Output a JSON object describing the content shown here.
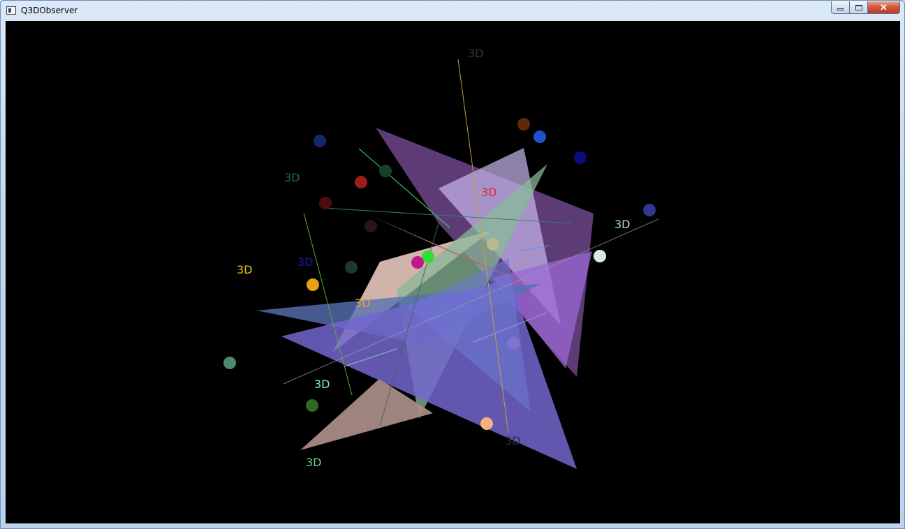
{
  "window": {
    "title": "Q3DObserver",
    "controls": {
      "minimize": "minimize-icon",
      "maximize": "maximize-icon",
      "close": "close-icon"
    }
  },
  "scene": {
    "labels": [
      {
        "text": "3D",
        "color": "#2e3440"
      },
      {
        "text": "3D",
        "color": "#1e6b4a"
      },
      {
        "text": "3D",
        "color": "#ee2233"
      },
      {
        "text": "3D",
        "color": "#a8d8ee"
      },
      {
        "text": "3D",
        "color": "#e8c010"
      },
      {
        "text": "3D",
        "color": "#1a1aa0"
      },
      {
        "text": "3D",
        "color": "#f0a020"
      },
      {
        "text": "3D",
        "color": "#80e8c8"
      },
      {
        "text": "3D",
        "color": "#2e2a48"
      },
      {
        "text": "3D",
        "color": "#60d890"
      }
    ]
  }
}
